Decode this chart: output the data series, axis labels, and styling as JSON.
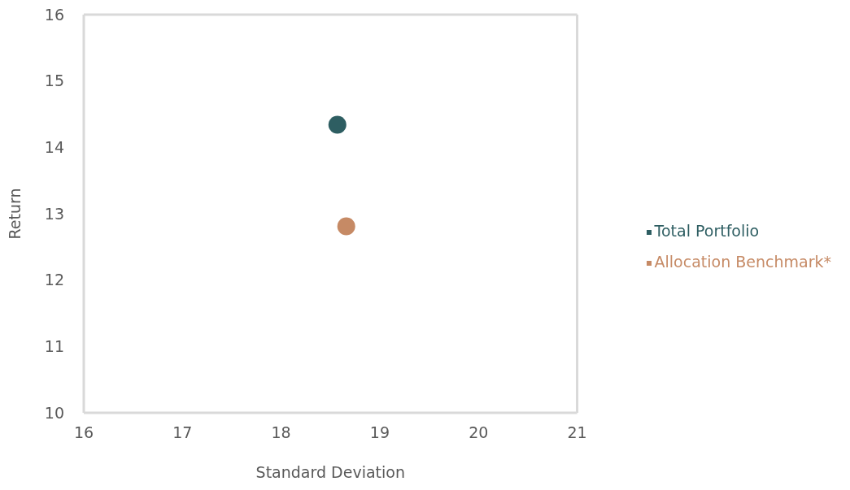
{
  "chart_data": {
    "type": "scatter",
    "xlabel": "Standard Deviation",
    "ylabel": "Return",
    "xlim": [
      16,
      21
    ],
    "xticks": [
      16,
      17,
      18,
      19,
      20,
      21
    ],
    "ylim": [
      10,
      16
    ],
    "yticks": [
      10,
      11,
      12,
      13,
      14,
      15,
      16
    ],
    "series": [
      {
        "name": "Total Portfolio",
        "color": "#2e5e62",
        "x": [
          18.57
        ],
        "values": [
          14.34
        ]
      },
      {
        "name": "Allocation Benchmark*",
        "color": "#c68a65",
        "x": [
          18.66
        ],
        "values": [
          12.81
        ]
      }
    ],
    "marker": "circle",
    "grid": false,
    "legend": "right"
  }
}
